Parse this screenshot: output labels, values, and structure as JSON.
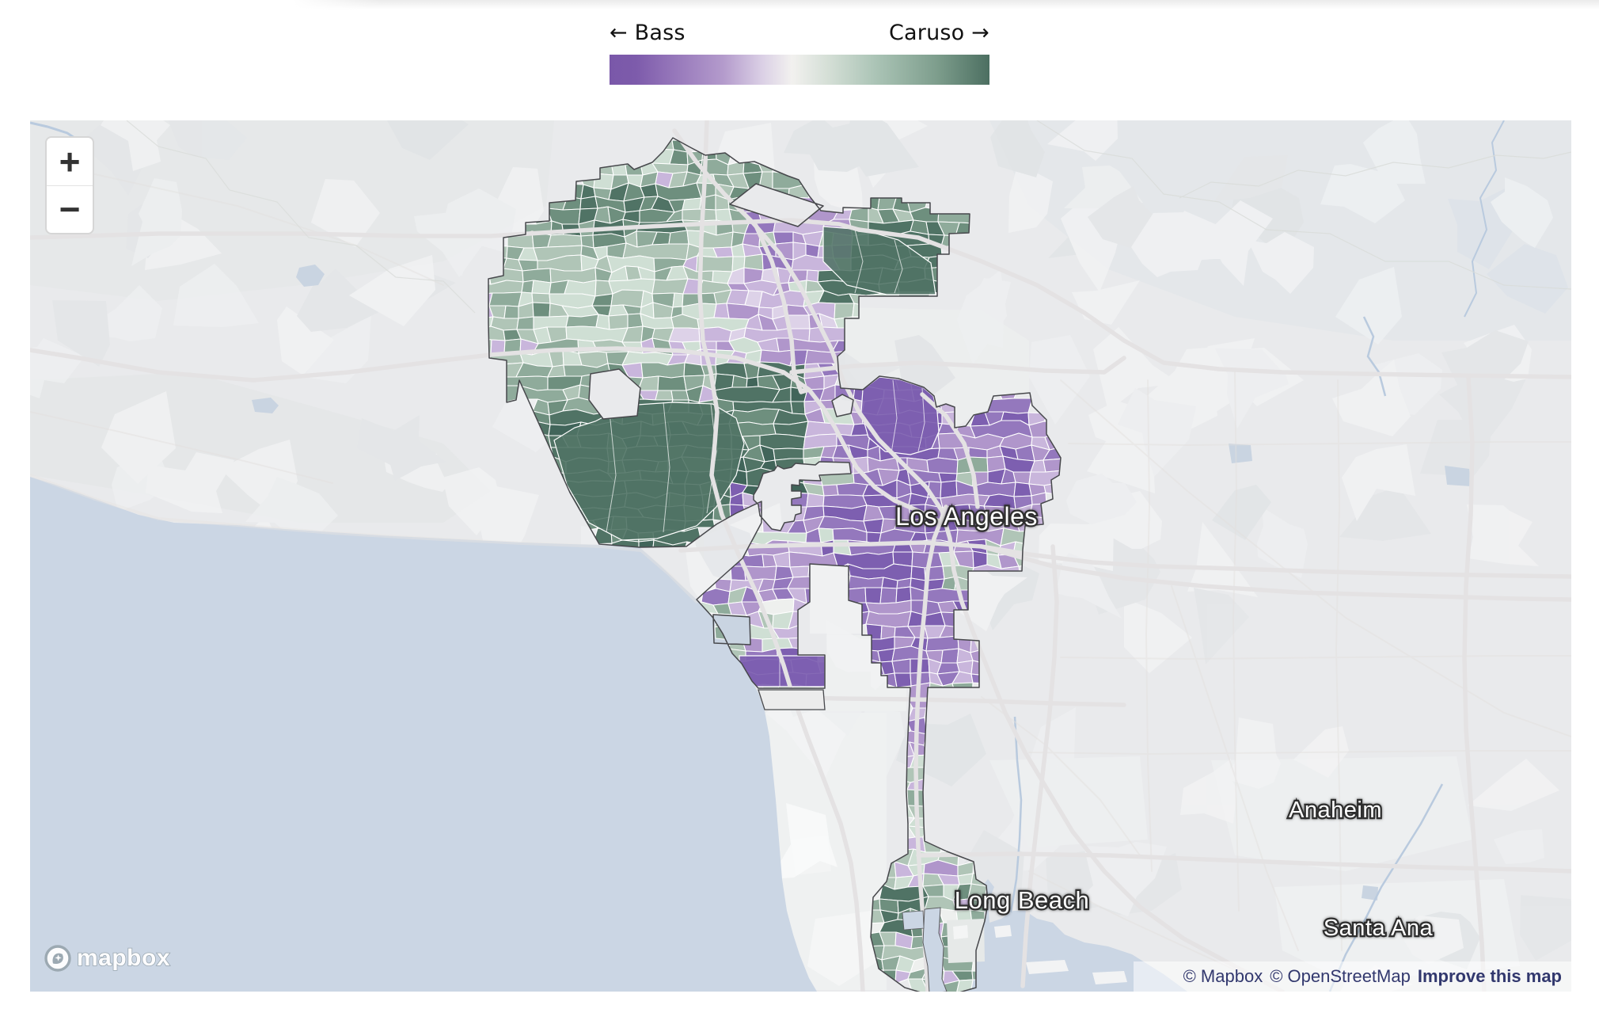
{
  "legend": {
    "bass_label": "← Bass",
    "caruso_label": "Caruso →",
    "bass_color": "#7a58a9",
    "caruso_color": "#4e7163"
  },
  "controls": {
    "zoom_in_label": "+",
    "zoom_out_label": "−"
  },
  "map_labels": {
    "los_angeles": "Los Angeles",
    "long_beach": "Long Beach",
    "anaheim": "Anaheim",
    "santa_ana": "Santa Ana"
  },
  "attribution": {
    "mapbox": "© Mapbox",
    "openstreetmap": "© OpenStreetMap",
    "improve": "Improve this map"
  },
  "logo": {
    "text": "mapbox"
  },
  "map": {
    "type": "choropleth",
    "candidates": [
      {
        "name": "Bass",
        "color": "#7a58a9"
      },
      {
        "name": "Caruso",
        "color": "#4e7163"
      }
    ],
    "colors": {
      "water": "#cbd6e4",
      "land": "#e9eaec"
    }
  }
}
